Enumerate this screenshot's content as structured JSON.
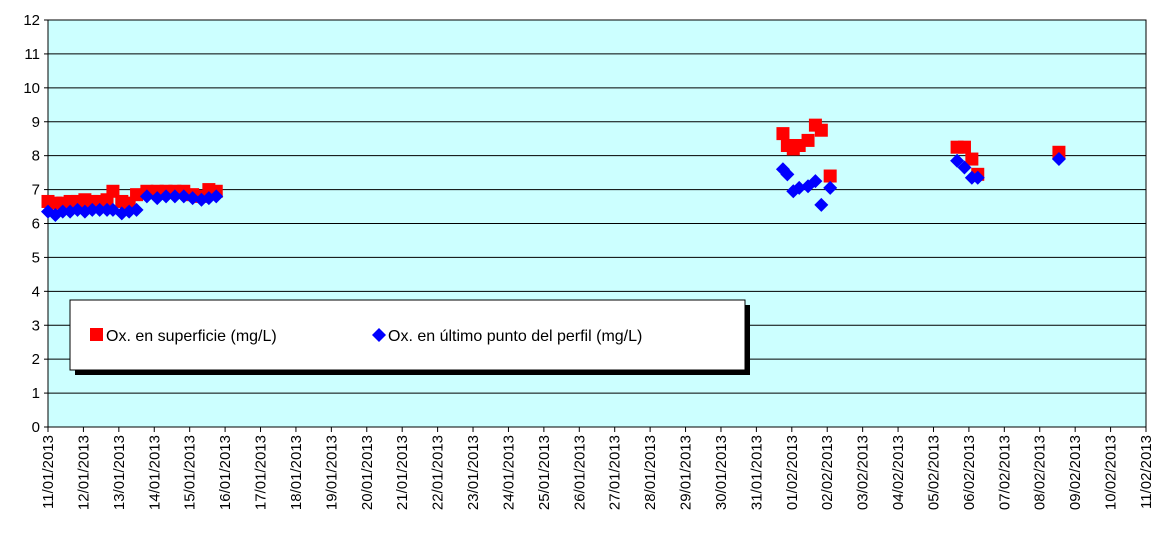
{
  "chart_data": {
    "type": "scatter",
    "title": "",
    "xlabel": "",
    "ylabel": "",
    "ylim": [
      0,
      12
    ],
    "yticks": [
      "0",
      "1",
      "2",
      "3",
      "4",
      "5",
      "6",
      "7",
      "8",
      "9",
      "10",
      "11",
      "12"
    ],
    "xlim": [
      "2013-01-11",
      "2013-02-11"
    ],
    "xticks": [
      "11/01/2013",
      "12/01/2013",
      "13/01/2013",
      "14/01/2013",
      "15/01/2013",
      "16/01/2013",
      "17/01/2013",
      "18/01/2013",
      "19/01/2013",
      "20/01/2013",
      "21/01/2013",
      "22/01/2013",
      "23/01/2013",
      "24/01/2013",
      "25/01/2013",
      "26/01/2013",
      "27/01/2013",
      "28/01/2013",
      "29/01/2013",
      "30/01/2013",
      "31/01/2013",
      "01/02/2013",
      "02/02/2013",
      "03/02/2013",
      "04/02/2013",
      "05/02/2013",
      "06/02/2013",
      "07/02/2013",
      "08/02/2013",
      "09/02/2013",
      "10/02/2013",
      "11/02/2013"
    ],
    "grid": true,
    "plot_background": "#ccffff",
    "legend_position": "lower-left inside plot",
    "series": [
      {
        "name": "Ox. en superficie (mg/L)",
        "marker": "square",
        "color": "#ff0000",
        "points": [
          [
            "2013-01-11T00:00",
            6.65
          ],
          [
            "2013-01-11T05:00",
            6.6
          ],
          [
            "2013-01-11T10:00",
            6.6
          ],
          [
            "2013-01-11T15:00",
            6.65
          ],
          [
            "2013-01-11T20:00",
            6.65
          ],
          [
            "2013-01-12T01:00",
            6.7
          ],
          [
            "2013-01-12T06:00",
            6.65
          ],
          [
            "2013-01-12T11:00",
            6.65
          ],
          [
            "2013-01-12T16:00",
            6.7
          ],
          [
            "2013-01-12T20:00",
            6.95
          ],
          [
            "2013-01-13T02:00",
            6.65
          ],
          [
            "2013-01-13T07:00",
            6.6
          ],
          [
            "2013-01-13T12:00",
            6.85
          ],
          [
            "2013-01-13T19:00",
            6.95
          ],
          [
            "2013-01-14T02:00",
            6.95
          ],
          [
            "2013-01-14T08:00",
            6.95
          ],
          [
            "2013-01-14T14:00",
            6.95
          ],
          [
            "2013-01-14T20:00",
            6.95
          ],
          [
            "2013-01-15T02:00",
            6.85
          ],
          [
            "2013-01-15T08:00",
            6.8
          ],
          [
            "2013-01-15T13:00",
            7.0
          ],
          [
            "2013-01-15T18:00",
            6.95
          ],
          [
            "2013-01-31T18:00",
            8.65
          ],
          [
            "2013-01-31T21:00",
            8.3
          ],
          [
            "2013-02-01T01:00",
            8.2
          ],
          [
            "2013-02-01T05:00",
            8.3
          ],
          [
            "2013-02-01T11:00",
            8.45
          ],
          [
            "2013-02-01T16:00",
            8.9
          ],
          [
            "2013-02-01T20:00",
            8.75
          ],
          [
            "2013-02-02T02:00",
            7.4
          ],
          [
            "2013-02-05T16:00",
            8.25
          ],
          [
            "2013-02-05T21:00",
            8.25
          ],
          [
            "2013-02-06T02:00",
            7.9
          ],
          [
            "2013-02-06T06:00",
            7.45
          ],
          [
            "2013-02-08T13:00",
            8.1
          ]
        ]
      },
      {
        "name": "Ox. en último punto del perfil (mg/L)",
        "marker": "diamond",
        "color": "#0000ff",
        "points": [
          [
            "2013-01-11T00:00",
            6.35
          ],
          [
            "2013-01-11T05:00",
            6.25
          ],
          [
            "2013-01-11T10:00",
            6.35
          ],
          [
            "2013-01-11T15:00",
            6.35
          ],
          [
            "2013-01-11T20:00",
            6.4
          ],
          [
            "2013-01-12T01:00",
            6.35
          ],
          [
            "2013-01-12T06:00",
            6.4
          ],
          [
            "2013-01-12T11:00",
            6.4
          ],
          [
            "2013-01-12T16:00",
            6.4
          ],
          [
            "2013-01-12T20:00",
            6.4
          ],
          [
            "2013-01-13T02:00",
            6.3
          ],
          [
            "2013-01-13T07:00",
            6.35
          ],
          [
            "2013-01-13T12:00",
            6.4
          ],
          [
            "2013-01-13T19:00",
            6.8
          ],
          [
            "2013-01-14T02:00",
            6.75
          ],
          [
            "2013-01-14T08:00",
            6.8
          ],
          [
            "2013-01-14T14:00",
            6.8
          ],
          [
            "2013-01-14T20:00",
            6.8
          ],
          [
            "2013-01-15T02:00",
            6.75
          ],
          [
            "2013-01-15T08:00",
            6.7
          ],
          [
            "2013-01-15T13:00",
            6.75
          ],
          [
            "2013-01-15T18:00",
            6.8
          ],
          [
            "2013-01-31T18:00",
            7.6
          ],
          [
            "2013-01-31T21:00",
            7.45
          ],
          [
            "2013-02-01T01:00",
            6.95
          ],
          [
            "2013-02-01T05:00",
            7.05
          ],
          [
            "2013-02-01T11:00",
            7.1
          ],
          [
            "2013-02-01T16:00",
            7.25
          ],
          [
            "2013-02-01T20:00",
            6.55
          ],
          [
            "2013-02-02T02:00",
            7.05
          ],
          [
            "2013-02-05T16:00",
            7.85
          ],
          [
            "2013-02-05T21:00",
            7.65
          ],
          [
            "2013-02-06T02:00",
            7.35
          ],
          [
            "2013-02-06T06:00",
            7.35
          ],
          [
            "2013-02-08T13:00",
            7.9
          ]
        ]
      }
    ]
  }
}
